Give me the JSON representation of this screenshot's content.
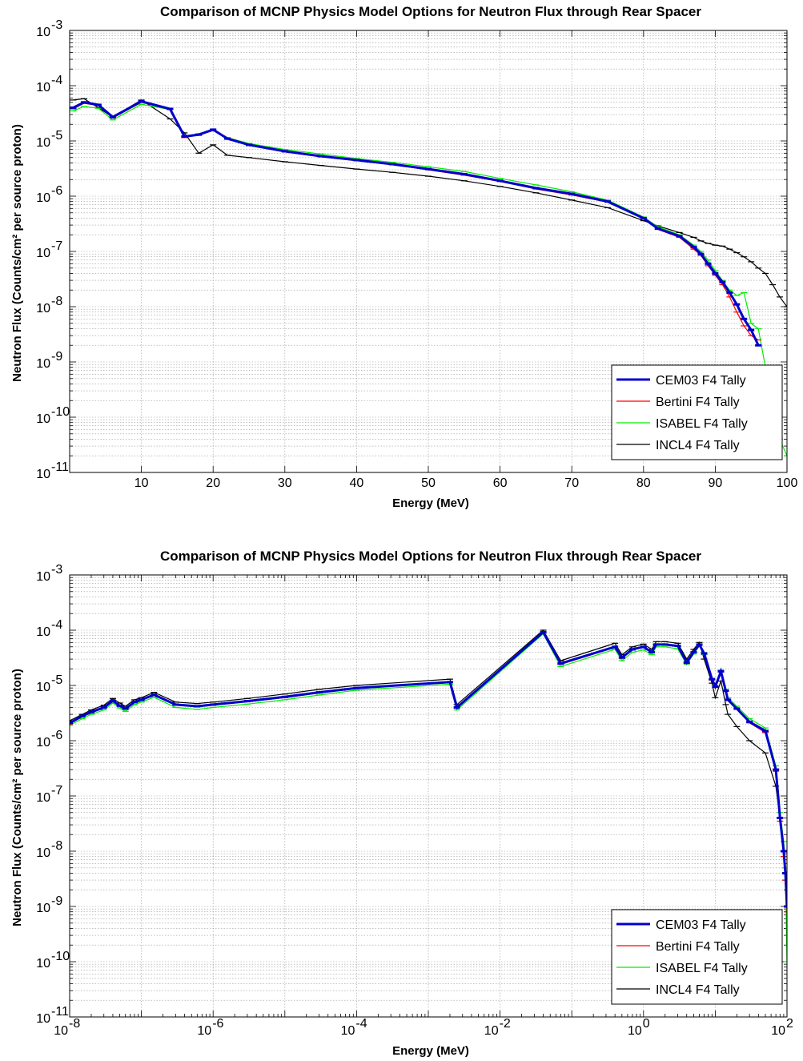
{
  "colors": {
    "CEM03": "#0000cc",
    "Bertini": "#ff0000",
    "ISABEL": "#00ee00",
    "INCL4": "#000000"
  },
  "chart_data": [
    {
      "type": "line",
      "title": "Comparison of MCNP Physics Model Options for Neutron Flux through Rear Spacer",
      "xlabel": "Energy (MeV)",
      "ylabel": "Neutron Flux (Counts/cm² per source proton)",
      "xscale": "linear",
      "yscale": "log",
      "xlim": [
        0,
        100
      ],
      "ylim": [
        1e-11,
        0.001
      ],
      "xticks": [
        10,
        20,
        30,
        40,
        50,
        60,
        70,
        80,
        90,
        100
      ],
      "xticklabels": [
        "10",
        "20",
        "30",
        "40",
        "50",
        "60",
        "70",
        "80",
        "90",
        "100"
      ],
      "yticks": [
        1e-11,
        1e-10,
        1e-09,
        1e-08,
        1e-07,
        1e-06,
        1e-05,
        0.0001,
        0.001
      ],
      "ytick_exponents": [
        "-11",
        "-10",
        "-9",
        "-8",
        "-7",
        "-6",
        "-5",
        "-4",
        "-3"
      ],
      "ytick_base": "10",
      "grid": true,
      "legend_position": "bottom-right",
      "x": [
        0.5,
        2,
        4,
        6,
        10,
        14,
        16,
        18,
        20,
        22,
        25,
        30,
        35,
        40,
        45,
        50,
        55,
        60,
        65,
        70,
        75,
        80,
        82,
        85,
        87,
        88,
        89,
        90,
        91,
        92,
        93,
        94,
        95,
        96,
        97,
        98,
        99,
        100
      ],
      "series": [
        {
          "name": "CEM03 F4 Tally",
          "values": [
            4e-05,
            5e-05,
            4.5e-05,
            2.7e-05,
            5.2e-05,
            3.8e-05,
            1.2e-05,
            1.3e-05,
            1.6e-05,
            1.1e-05,
            8.5e-06,
            6.5e-06,
            5.3e-06,
            4.5e-06,
            3.8e-06,
            3.1e-06,
            2.5e-06,
            1.9e-06,
            1.4e-06,
            1.1e-06,
            8e-07,
            4e-07,
            2.6e-07,
            1.9e-07,
            1.2e-07,
            9e-08,
            6e-08,
            4e-08,
            2.8e-08,
            1.8e-08,
            1.1e-08,
            6e-09,
            3.8e-09,
            2e-09,
            null,
            null,
            null,
            null
          ]
        },
        {
          "name": "Bertini F4 Tally",
          "values": [
            3.8e-05,
            4.8e-05,
            4.4e-05,
            2.6e-05,
            5e-05,
            3.7e-05,
            1.15e-05,
            1.3e-05,
            1.55e-05,
            1.1e-05,
            8.3e-06,
            6.3e-06,
            5.2e-06,
            4.4e-06,
            3.7e-06,
            3e-06,
            2.4e-06,
            1.85e-06,
            1.35e-06,
            1.05e-06,
            7.8e-07,
            3.9e-07,
            2.5e-07,
            1.8e-07,
            1.1e-07,
            8.5e-08,
            5.5e-08,
            3.7e-08,
            2.5e-08,
            1.5e-08,
            8e-09,
            4.5e-09,
            3e-09,
            2.5e-09,
            null,
            null,
            null,
            null
          ]
        },
        {
          "name": "ISABEL F4 Tally",
          "values": [
            3.5e-05,
            4.2e-05,
            3.9e-05,
            2.4e-05,
            4.6e-05,
            3.7e-05,
            1.2e-05,
            1.35e-05,
            1.6e-05,
            1.15e-05,
            9e-06,
            7e-06,
            5.8e-06,
            4.8e-06,
            4.1e-06,
            3.4e-06,
            2.8e-06,
            2.1e-06,
            1.6e-06,
            1.2e-06,
            8.5e-07,
            4.2e-07,
            2.8e-07,
            2e-07,
            1.3e-07,
            1e-07,
            7e-08,
            4.5e-08,
            3e-08,
            2e-08,
            1.6e-08,
            1.8e-08,
            5e-09,
            4e-09,
            8e-10,
            1e-10,
            4e-11,
            2e-11
          ]
        },
        {
          "name": "INCL4 F4 Tally",
          "values": [
            5.5e-05,
            5.8e-05,
            4e-05,
            2.7e-05,
            5.5e-05,
            2.5e-05,
            1.4e-05,
            6e-06,
            8.5e-06,
            5.5e-06,
            5e-06,
            4.2e-06,
            3.6e-06,
            3.1e-06,
            2.7e-06,
            2.3e-06,
            1.9e-06,
            1.5e-06,
            1.15e-06,
            8.5e-07,
            6.2e-07,
            3.6e-07,
            2.9e-07,
            2.2e-07,
            1.8e-07,
            1.55e-07,
            1.4e-07,
            1.3e-07,
            1.25e-07,
            1.1e-07,
            9.5e-08,
            8e-08,
            6.5e-08,
            5e-08,
            4e-08,
            2.5e-08,
            1.5e-08,
            1e-08
          ]
        }
      ],
      "legend": [
        "CEM03 F4 Tally",
        "Bertini F4 Tally",
        "ISABEL F4 Tally",
        "INCL4 F4 Tally"
      ]
    },
    {
      "type": "line",
      "title": "Comparison of MCNP Physics Model Options for Neutron Flux through Rear Spacer",
      "xlabel": "Energy (MeV)",
      "ylabel": "Neutron Flux (Counts/cm² per source proton)",
      "xscale": "log",
      "yscale": "log",
      "xlim": [
        1e-08,
        100
      ],
      "ylim": [
        1e-11,
        0.001
      ],
      "xticks": [
        1e-08,
        1e-06,
        0.0001,
        0.01,
        1,
        100
      ],
      "xtick_exponents": [
        "-8",
        "-6",
        "-4",
        "-2",
        "0",
        "2"
      ],
      "yticks": [
        1e-11,
        1e-10,
        1e-09,
        1e-08,
        1e-07,
        1e-06,
        1e-05,
        0.0001,
        0.001
      ],
      "ytick_exponents": [
        "-11",
        "-10",
        "-9",
        "-8",
        "-7",
        "-6",
        "-5",
        "-4",
        "-3"
      ],
      "tick_base": "10",
      "grid": true,
      "legend_position": "bottom-right",
      "x": [
        1e-08,
        1.5e-08,
        2e-08,
        3e-08,
        4e-08,
        5e-08,
        6e-08,
        8e-08,
        1e-07,
        1.5e-07,
        3e-07,
        6e-07,
        1e-06,
        3e-06,
        1e-05,
        3e-05,
        0.0001,
        0.002,
        0.0025,
        0.04,
        0.07,
        0.4,
        0.5,
        0.7,
        1,
        1.3,
        1.5,
        2,
        3,
        4,
        5,
        6,
        7,
        9,
        10,
        12,
        14,
        15,
        20,
        30,
        50,
        70,
        80,
        90,
        95,
        100
      ],
      "series": [
        {
          "name": "CEM03 F4 Tally",
          "values": [
            2.1e-06,
            2.8e-06,
            3.3e-06,
            4e-06,
            5.3e-06,
            4.3e-06,
            3.8e-06,
            5e-06,
            5.5e-06,
            6.8e-06,
            4.5e-06,
            4.2e-06,
            4.5e-06,
            5.2e-06,
            6.2e-06,
            7.5e-06,
            9e-06,
            1.15e-05,
            4e-06,
            9.2e-05,
            2.5e-05,
            5e-05,
            3.2e-05,
            4.5e-05,
            5e-05,
            4e-05,
            5.5e-05,
            5.5e-05,
            5.2e-05,
            2.6e-05,
            4e-05,
            5.5e-05,
            3.8e-05,
            1.3e-05,
            9.5e-06,
            1.8e-05,
            8e-06,
            5.5e-06,
            3.8e-06,
            2.2e-06,
            1.5e-06,
            3e-07,
            4e-08,
            1e-08,
            4e-09,
            1e-09
          ]
        },
        {
          "name": "Bertini F4 Tally",
          "values": [
            2e-06,
            2.7e-06,
            3.2e-06,
            3.9e-06,
            5.2e-06,
            4.2e-06,
            3.7e-06,
            4.9e-06,
            5.4e-06,
            6.6e-06,
            4.4e-06,
            4.1e-06,
            4.4e-06,
            5.1e-06,
            6e-06,
            7.3e-06,
            8.8e-06,
            1.12e-05,
            3.9e-06,
            9e-05,
            2.4e-05,
            4.9e-05,
            3.1e-05,
            4.4e-05,
            4.9e-05,
            3.9e-05,
            5.4e-05,
            5.4e-05,
            5.1e-05,
            2.5e-05,
            3.9e-05,
            5.4e-05,
            3.7e-05,
            1.25e-05,
            9.2e-06,
            1.75e-05,
            7.8e-06,
            5.4e-06,
            3.7e-06,
            2.1e-06,
            1.4e-06,
            2.8e-07,
            3.5e-08,
            8e-09,
            3e-09,
            8e-10
          ]
        },
        {
          "name": "ISABEL F4 Tally",
          "values": [
            1.9e-06,
            2.5e-06,
            3e-06,
            3.6e-06,
            4.8e-06,
            3.9e-06,
            3.4e-06,
            4.5e-06,
            5e-06,
            6.1e-06,
            4e-06,
            3.7e-06,
            4e-06,
            4.6e-06,
            5.5e-06,
            6.7e-06,
            8.2e-06,
            1.05e-05,
            3.6e-06,
            8.6e-05,
            2.2e-05,
            4.5e-05,
            2.8e-05,
            4e-05,
            4.4e-05,
            3.6e-05,
            5e-05,
            5e-05,
            4.6e-05,
            2.4e-05,
            3.7e-05,
            5.2e-05,
            3.6e-05,
            1.3e-05,
            1e-05,
            1.9e-05,
            8.5e-06,
            6e-06,
            4.2e-06,
            2.5e-06,
            1.7e-06,
            3.5e-07,
            5e-08,
            1.5e-08,
            5e-09,
            1e-10
          ]
        },
        {
          "name": "INCL4 F4 Tally",
          "values": [
            2.3e-06,
            3e-06,
            3.6e-06,
            4.4e-06,
            5.8e-06,
            4.8e-06,
            4.2e-06,
            5.5e-06,
            6e-06,
            7.5e-06,
            5e-06,
            4.7e-06,
            5e-06,
            5.8e-06,
            7e-06,
            8.5e-06,
            1e-05,
            1.3e-05,
            4.5e-06,
            0.0001,
            2.8e-05,
            5.8e-05,
            3.6e-05,
            5e-05,
            5.6e-05,
            4.5e-05,
            6.2e-05,
            6.2e-05,
            5.8e-05,
            3e-05,
            4.5e-05,
            6e-05,
            3e-05,
            1.1e-05,
            6e-06,
            1.2e-05,
            4.5e-06,
            3e-06,
            1.8e-06,
            1e-06,
            6e-07,
            1.5e-07,
            4e-08,
            1e-08,
            3e-09,
            1e-09
          ]
        }
      ],
      "legend": [
        "CEM03 F4 Tally",
        "Bertini F4 Tally",
        "ISABEL F4 Tally",
        "INCL4 F4 Tally"
      ]
    }
  ]
}
